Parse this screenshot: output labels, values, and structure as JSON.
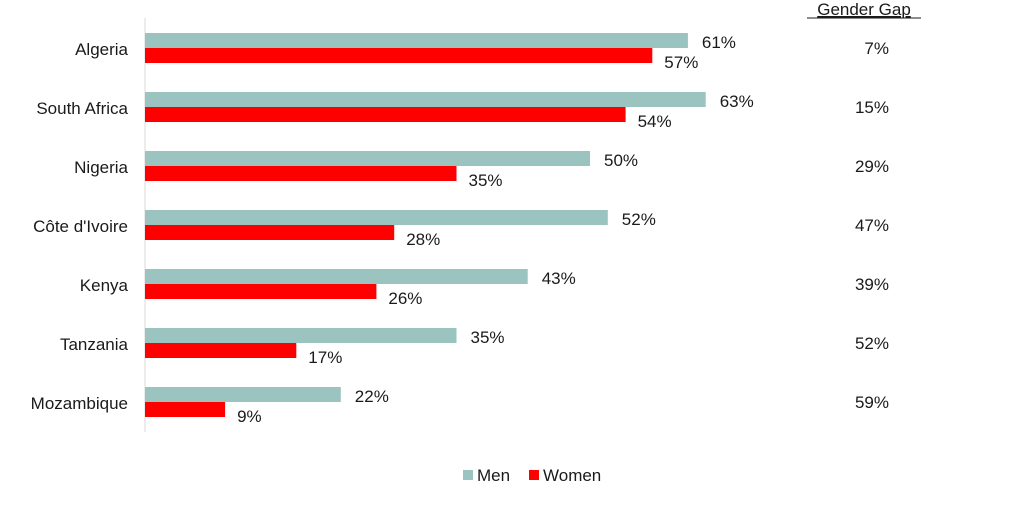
{
  "chart_data": {
    "type": "bar",
    "orientation": "horizontal",
    "categories": [
      "Algeria",
      "South Africa",
      "Nigeria",
      "Côte d'Ivoire",
      "Kenya",
      "Tanzania",
      "Mozambique"
    ],
    "series": [
      {
        "name": "Men",
        "color": "#9bc3bf",
        "values": [
          61,
          63,
          50,
          52,
          43,
          35,
          22
        ],
        "labels": [
          "61%",
          "63%",
          "50%",
          "52%",
          "43%",
          "35%",
          "22%"
        ]
      },
      {
        "name": "Women",
        "color": "#ff0000",
        "values": [
          57,
          54,
          35,
          28,
          26,
          17,
          9
        ],
        "labels": [
          "57%",
          "54%",
          "35%",
          "28%",
          "26%",
          "17%",
          "9%"
        ]
      }
    ],
    "gender_gap": {
      "title": "Gender Gap",
      "values": [
        "7%",
        "15%",
        "29%",
        "47%",
        "39%",
        "52%",
        "59%"
      ]
    },
    "xlim": [
      0,
      100
    ],
    "grid": false,
    "legend_position": "bottom"
  }
}
